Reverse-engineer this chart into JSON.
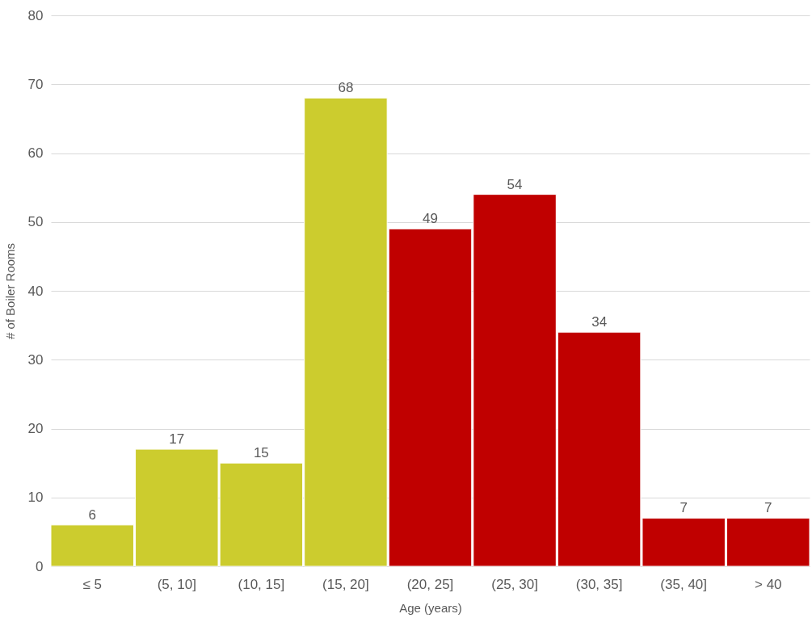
{
  "chart_data": {
    "type": "bar",
    "xlabel": "Age (years)",
    "ylabel": "# of Boiler Rooms",
    "categories": [
      "≤ 5",
      "(5, 10]",
      "(10, 15]",
      "(15, 20]",
      "(20, 25]",
      "(25, 30]",
      "(30, 35]",
      "(35, 40]",
      "> 40"
    ],
    "values": [
      6,
      17,
      15,
      68,
      49,
      54,
      34,
      7,
      7
    ],
    "colors": [
      "#cccc2e",
      "#cccc2e",
      "#cccc2e",
      "#cccc2e",
      "#c00000",
      "#c00000",
      "#c00000",
      "#c00000",
      "#c00000"
    ],
    "ylim": [
      0,
      80
    ],
    "yticks": [
      0,
      10,
      20,
      30,
      40,
      50,
      60,
      70,
      80
    ],
    "grid": "y",
    "data_labels": true
  }
}
